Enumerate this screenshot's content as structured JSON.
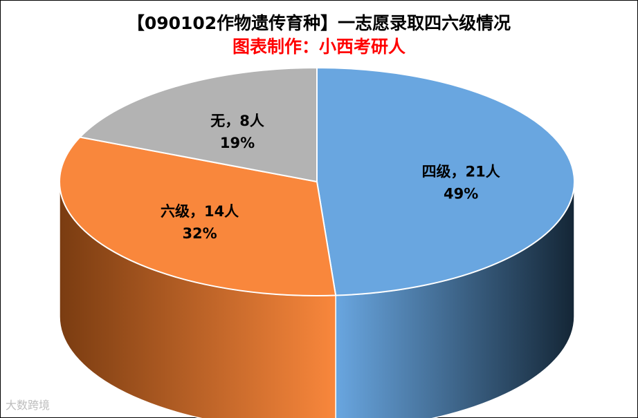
{
  "chart_data": {
    "type": "pie",
    "style": "3d",
    "title": "【090102作物遗传育种】一志愿录取四六级情况",
    "subtitle": "图表制作：小西考研人",
    "slices": [
      {
        "label": "四级，21人",
        "value": 21,
        "percent": "49%",
        "color": "#69a6e0",
        "side_dark": "#142636"
      },
      {
        "label": "六级，14人",
        "value": 14,
        "percent": "32%",
        "color": "#f9873c",
        "side_dark": "#7a3c11"
      },
      {
        "label": "无，8人",
        "value": 8,
        "percent": "19%",
        "color": "#b3b3b3",
        "side_dark": "#6e6e6e"
      }
    ],
    "start_angle_deg": 0,
    "direction": "clockwise"
  },
  "watermark": "大数跨境"
}
